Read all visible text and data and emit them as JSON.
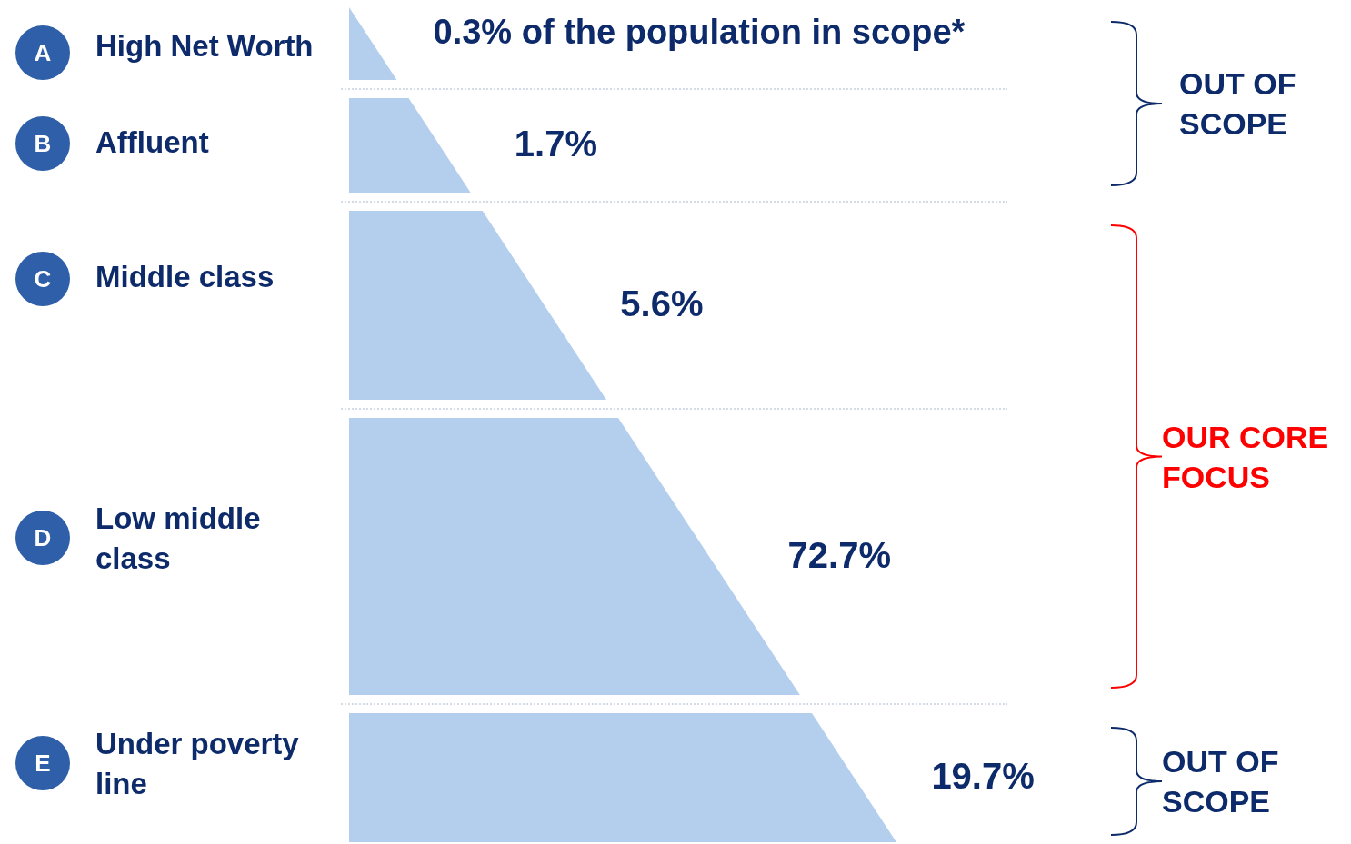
{
  "chart_data": {
    "type": "other",
    "categories": [
      "High Net Worth",
      "Affluent",
      "Middle class",
      "Low middle class",
      "Under poverty line"
    ],
    "values": [
      0.3,
      1.7,
      5.6,
      72.7,
      19.7
    ],
    "value_labels": [
      "0.3% of the population in scope*",
      "1.7%",
      "5.6%",
      "72.7%",
      "19.7%"
    ],
    "color": "#b4cfed",
    "annotations": [
      "A",
      "B",
      "C",
      "D",
      "E",
      "OUT OF SCOPE",
      "OUR CORE FOCUS",
      "OUT OF SCOPE"
    ]
  }
}
